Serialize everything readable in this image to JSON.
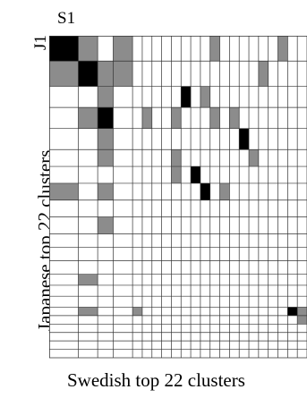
{
  "labels": {
    "column_first": "S1",
    "row_first": "J1",
    "x_axis": "Swedish top 22 clusters",
    "y_axis": "Japanese top 22 clusters"
  },
  "colors": {
    "dark": "#000000",
    "mid": "#8c8c8c",
    "grid": "#333333",
    "background": "#ffffff"
  },
  "matrix": {
    "rows": 22,
    "cols": 22,
    "row_weights": [
      3,
      3,
      2.5,
      2.5,
      2.5,
      2,
      2,
      2,
      2,
      2,
      1.6,
      1.6,
      1.6,
      1.3,
      1.3,
      1.3,
      1,
      1,
      1,
      1,
      1,
      1
    ],
    "col_weights": [
      3,
      2,
      1.6,
      2,
      1,
      1,
      1,
      1,
      1,
      1,
      1,
      1,
      1,
      1,
      1,
      1,
      1,
      1,
      1,
      1,
      1,
      1
    ],
    "cells": [
      [
        0,
        0,
        "dark"
      ],
      [
        0,
        1,
        "mid"
      ],
      [
        0,
        3,
        "mid"
      ],
      [
        0,
        12,
        "mid"
      ],
      [
        0,
        19,
        "mid"
      ],
      [
        1,
        0,
        "mid"
      ],
      [
        1,
        1,
        "dark"
      ],
      [
        1,
        2,
        "mid"
      ],
      [
        1,
        3,
        "mid"
      ],
      [
        1,
        17,
        "mid"
      ],
      [
        2,
        2,
        "mid"
      ],
      [
        2,
        9,
        "dark"
      ],
      [
        2,
        11,
        "mid"
      ],
      [
        3,
        1,
        "mid"
      ],
      [
        3,
        2,
        "dark"
      ],
      [
        3,
        5,
        "mid"
      ],
      [
        3,
        8,
        "mid"
      ],
      [
        3,
        12,
        "mid"
      ],
      [
        3,
        14,
        "mid"
      ],
      [
        4,
        2,
        "mid"
      ],
      [
        4,
        15,
        "dark"
      ],
      [
        5,
        2,
        "mid"
      ],
      [
        5,
        8,
        "mid"
      ],
      [
        5,
        16,
        "mid"
      ],
      [
        6,
        8,
        "mid"
      ],
      [
        6,
        10,
        "dark"
      ],
      [
        7,
        0,
        "mid"
      ],
      [
        7,
        2,
        "mid"
      ],
      [
        7,
        11,
        "dark"
      ],
      [
        7,
        13,
        "mid"
      ],
      [
        9,
        2,
        "mid"
      ],
      [
        13,
        1,
        "mid"
      ],
      [
        16,
        1,
        "mid"
      ],
      [
        16,
        4,
        "mid"
      ],
      [
        16,
        20,
        "dark"
      ],
      [
        16,
        21,
        "mid"
      ],
      [
        17,
        21,
        "mid"
      ]
    ]
  }
}
